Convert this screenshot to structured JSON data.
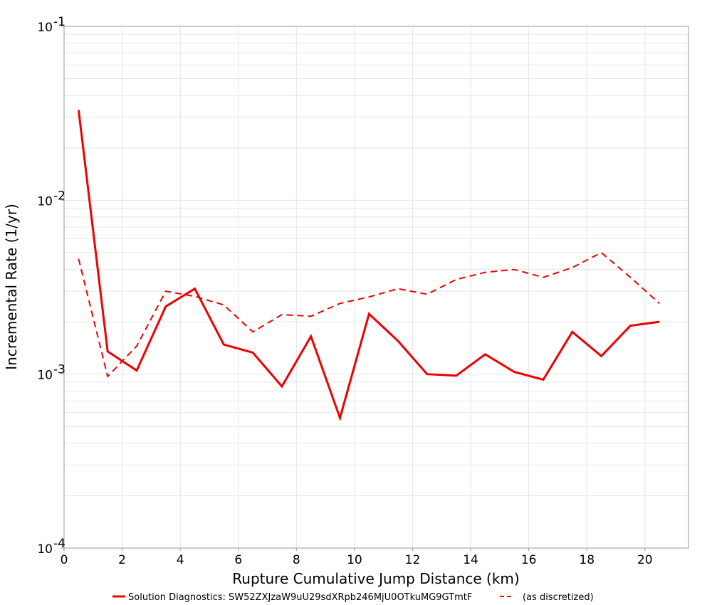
{
  "chart_data": {
    "type": "line",
    "title": "",
    "xlabel": "Rupture Cumulative Jump Distance (km)",
    "ylabel": "Incremental Rate (1/yr)",
    "xlim": [
      0,
      21.5
    ],
    "ylim": [
      0.0001,
      0.1
    ],
    "yscale": "log",
    "x_ticks": [
      0,
      2,
      4,
      6,
      8,
      10,
      12,
      14,
      16,
      18,
      20
    ],
    "y_ticks": [
      {
        "value": 0.0001,
        "base": "10",
        "exp": "-4"
      },
      {
        "value": 0.001,
        "base": "10",
        "exp": "-3"
      },
      {
        "value": 0.01,
        "base": "10",
        "exp": "-2"
      },
      {
        "value": 0.1,
        "base": "10",
        "exp": "-1"
      }
    ],
    "grid": true,
    "legend_position": "bottom",
    "series": [
      {
        "name": "Solution Diagnostics: SW52ZXJzaW9uU29sdXRpb246MjU0OTkuMG9GTmtF",
        "style": "solid",
        "color": "#ee0000",
        "x": [
          0.5,
          1.5,
          2.5,
          3.5,
          4.5,
          5.5,
          6.5,
          7.5,
          8.5,
          9.5,
          10.5,
          11.5,
          12.5,
          13.5,
          14.5,
          15.5,
          16.5,
          17.5,
          18.5,
          19.5,
          20.5
        ],
        "values": [
          0.033,
          0.00135,
          0.00105,
          0.00245,
          0.0031,
          0.00148,
          0.00133,
          0.00085,
          0.00165,
          0.00056,
          0.00222,
          0.00155,
          0.001,
          0.00098,
          0.0013,
          0.00103,
          0.00093,
          0.00175,
          0.00127,
          0.0019,
          0.002
        ]
      },
      {
        "name": "(as discretized)",
        "style": "dashed",
        "color": "#ee0000",
        "x": [
          0.5,
          1.5,
          2.5,
          3.5,
          4.5,
          5.5,
          6.5,
          7.5,
          8.5,
          9.5,
          10.5,
          11.5,
          12.5,
          13.5,
          14.5,
          15.5,
          16.5,
          17.5,
          18.5,
          19.5,
          20.5
        ],
        "values": [
          0.0046,
          0.00097,
          0.00145,
          0.003,
          0.0028,
          0.0025,
          0.00175,
          0.0022,
          0.00215,
          0.00255,
          0.00278,
          0.0031,
          0.00288,
          0.0035,
          0.00385,
          0.004,
          0.0036,
          0.0041,
          0.005,
          0.0036,
          0.00255
        ]
      }
    ]
  }
}
